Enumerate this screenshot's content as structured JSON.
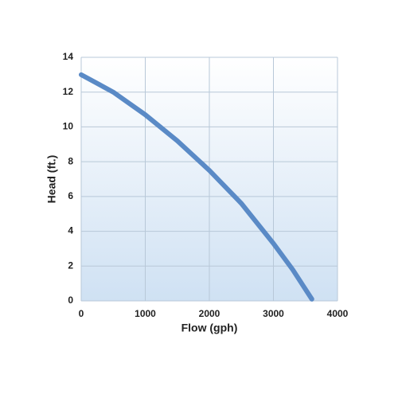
{
  "chart_data": {
    "type": "line",
    "x_label": "Flow (gph)",
    "y_label": "Head (ft.)",
    "x": [
      0,
      500,
      1000,
      1500,
      2000,
      2500,
      3000,
      3300,
      3600
    ],
    "series": [
      {
        "color": "#5a8ac6",
        "values": [
          13,
          12.0,
          10.7,
          9.2,
          7.5,
          5.6,
          3.3,
          1.8,
          0.1
        ]
      }
    ],
    "xlim": [
      0,
      4000
    ],
    "xticks": [
      0,
      1000,
      2000,
      3000,
      4000
    ],
    "ylim": [
      0,
      14
    ],
    "yticks": [
      0,
      2,
      4,
      6,
      8,
      10,
      12,
      14
    ],
    "grid": true
  }
}
